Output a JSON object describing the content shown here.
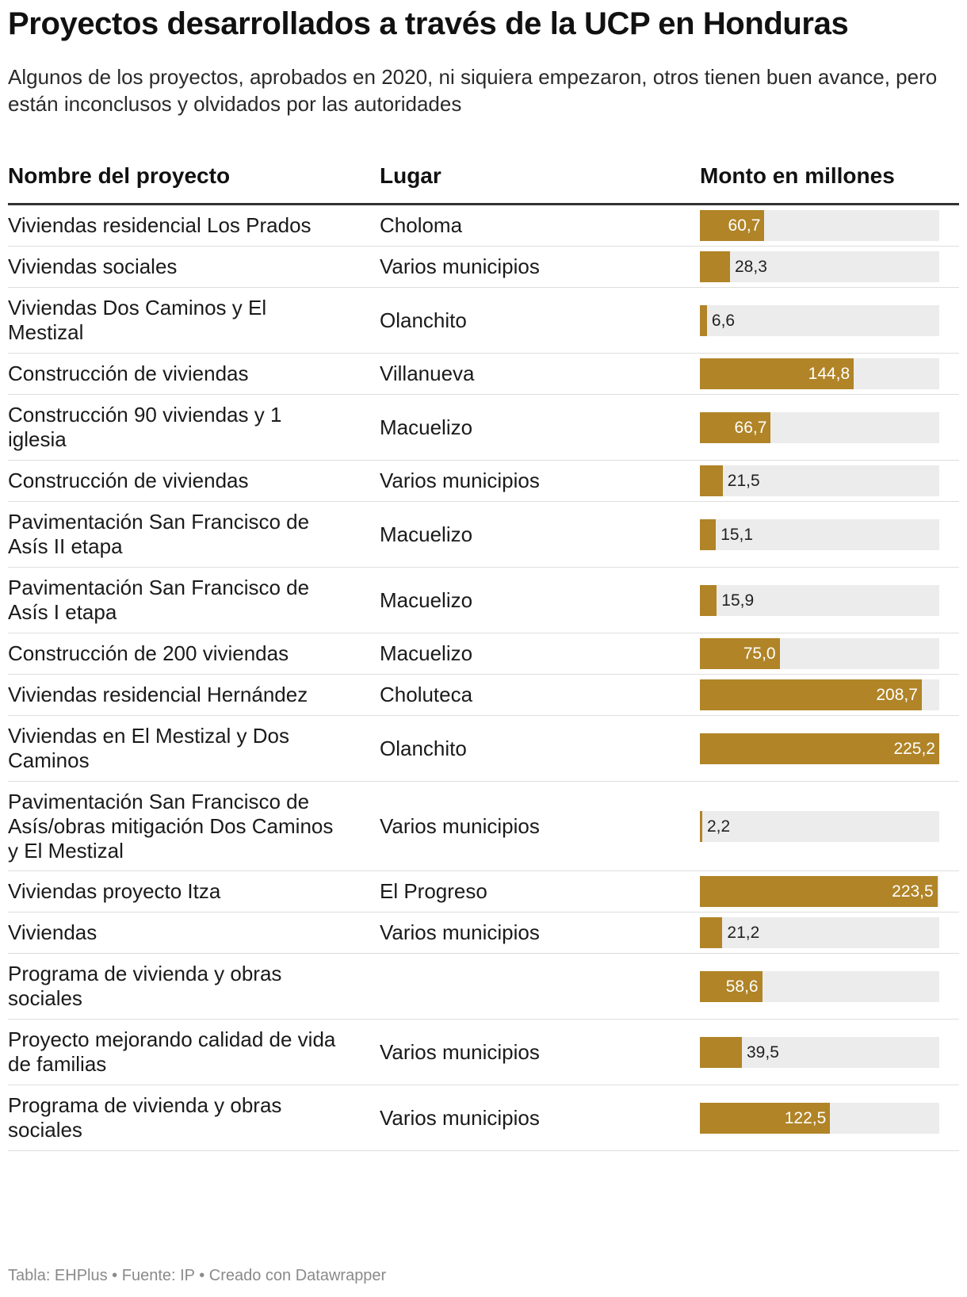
{
  "title": "Proyectos desarrollados a través de la UCP en Honduras",
  "subtitle": "Algunos de los proyectos, aprobados en 2020, ni siquiera empezaron, otros tienen buen avance, pero están inconclusos y olvidados por las autoridades",
  "headers": {
    "name": "Nombre del proyecto",
    "place": "Lugar",
    "amount": "Monto en millones"
  },
  "footer": "Tabla: EHPlus • Fuente: IP • Creado con Datawrapper",
  "colors": {
    "bar": "#b08427",
    "track": "#ececec"
  },
  "chart_data": {
    "type": "table",
    "title": "Proyectos desarrollados a través de la UCP en Honduras",
    "columns": [
      "Nombre del proyecto",
      "Lugar",
      "Monto en millones"
    ],
    "xlim": [
      0,
      225.2
    ],
    "rows": [
      {
        "name": "Viviendas residencial Los Prados",
        "place": "Choloma",
        "amount": 60.7,
        "label": "60,7"
      },
      {
        "name": "Viviendas sociales",
        "place": "Varios municipios",
        "amount": 28.3,
        "label": "28,3"
      },
      {
        "name": "Viviendas Dos Caminos y El Mestizal",
        "place": "Olanchito",
        "amount": 6.6,
        "label": "6,6"
      },
      {
        "name": "Construcción de viviendas",
        "place": "Villanueva",
        "amount": 144.8,
        "label": "144,8"
      },
      {
        "name": "Construcción 90 viviendas y 1 iglesia",
        "place": "Macuelizo",
        "amount": 66.7,
        "label": "66,7"
      },
      {
        "name": "Construcción de viviendas",
        "place": "Varios municipios",
        "amount": 21.5,
        "label": "21,5"
      },
      {
        "name": "Pavimentación San Francisco de Asís II etapa",
        "place": "Macuelizo",
        "amount": 15.1,
        "label": "15,1"
      },
      {
        "name": "Pavimentación San Francisco de Asís I etapa",
        "place": "Macuelizo",
        "amount": 15.9,
        "label": "15,9"
      },
      {
        "name": "Construcción de 200 viviendas",
        "place": "Macuelizo",
        "amount": 75.0,
        "label": "75,0"
      },
      {
        "name": "Viviendas residencial Hernández",
        "place": "Choluteca",
        "amount": 208.7,
        "label": "208,7"
      },
      {
        "name": "Viviendas en El Mestizal y Dos Caminos",
        "place": "Olanchito",
        "amount": 225.2,
        "label": "225,2"
      },
      {
        "name": "Pavimentación San Francisco de Asís/obras mitigación Dos Caminos y El Mestizal",
        "place": "Varios municipios",
        "amount": 2.2,
        "label": "2,2"
      },
      {
        "name": "Viviendas proyecto Itza",
        "place": "El Progreso",
        "amount": 223.5,
        "label": "223,5"
      },
      {
        "name": "Viviendas",
        "place": "Varios municipios",
        "amount": 21.2,
        "label": "21,2"
      },
      {
        "name": "Programa de vivienda y obras sociales",
        "place": "",
        "amount": 58.6,
        "label": "58,6"
      },
      {
        "name": "Proyecto mejorando calidad de vida de familias",
        "place": "Varios municipios",
        "amount": 39.5,
        "label": "39,5"
      },
      {
        "name": "Programa de vivienda y obras sociales",
        "place": "Varios municipios",
        "amount": 122.5,
        "label": "122,5"
      }
    ]
  }
}
